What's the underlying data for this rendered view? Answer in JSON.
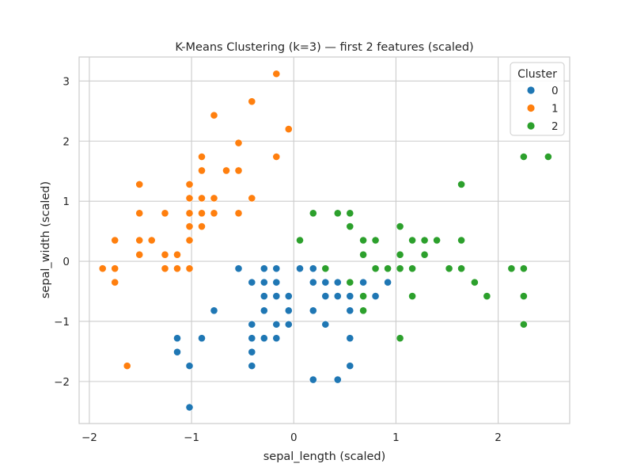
{
  "chart_data": {
    "type": "scatter",
    "title": "K-Means Clustering (k=3) — first 2 features (scaled)",
    "xlabel": "sepal_length (scaled)",
    "ylabel": "sepal_width (scaled)",
    "xlim": [
      -2.1,
      2.7
    ],
    "ylim": [
      -2.7,
      3.4
    ],
    "xticks": [
      -2,
      -1,
      0,
      1,
      2
    ],
    "yticks": [
      -2,
      -1,
      0,
      1,
      2,
      3
    ],
    "xtick_labels": [
      "−2",
      "−1",
      "0",
      "1",
      "2"
    ],
    "ytick_labels": [
      "−2",
      "−1",
      "0",
      "1",
      "2",
      "3"
    ],
    "grid": true,
    "legend": {
      "title": "Cluster",
      "placement": "top-right"
    },
    "series": [
      {
        "name": "0",
        "color": "#1f77b4",
        "points": [
          [
            -0.54,
            -0.12
          ],
          [
            -0.41,
            -0.35
          ],
          [
            -0.29,
            -0.12
          ],
          [
            -0.17,
            -0.12
          ],
          [
            0.06,
            -0.12
          ],
          [
            0.19,
            -0.12
          ],
          [
            -0.29,
            -0.35
          ],
          [
            -0.17,
            -0.35
          ],
          [
            0.19,
            -0.35
          ],
          [
            0.31,
            -0.35
          ],
          [
            0.43,
            -0.35
          ],
          [
            0.55,
            -0.35
          ],
          [
            0.68,
            -0.35
          ],
          [
            0.92,
            -0.35
          ],
          [
            -0.29,
            -0.58
          ],
          [
            -0.17,
            -0.58
          ],
          [
            -0.05,
            -0.58
          ],
          [
            0.31,
            -0.58
          ],
          [
            0.43,
            -0.58
          ],
          [
            0.55,
            -0.58
          ],
          [
            0.68,
            -0.58
          ],
          [
            0.8,
            -0.58
          ],
          [
            -0.78,
            -0.82
          ],
          [
            -0.29,
            -0.82
          ],
          [
            -0.05,
            -0.82
          ],
          [
            0.19,
            -0.82
          ],
          [
            0.55,
            -0.82
          ],
          [
            -0.41,
            -1.05
          ],
          [
            -0.17,
            -1.05
          ],
          [
            -0.05,
            -1.05
          ],
          [
            0.31,
            -1.05
          ],
          [
            -1.14,
            -1.28
          ],
          [
            -0.9,
            -1.28
          ],
          [
            -0.41,
            -1.28
          ],
          [
            -0.29,
            -1.28
          ],
          [
            -0.17,
            -1.28
          ],
          [
            0.55,
            -1.28
          ],
          [
            -1.14,
            -1.51
          ],
          [
            -0.41,
            -1.51
          ],
          [
            -1.02,
            -1.74
          ],
          [
            -0.41,
            -1.74
          ],
          [
            0.55,
            -1.74
          ],
          [
            0.19,
            -1.97
          ],
          [
            0.43,
            -1.97
          ],
          [
            -1.02,
            -2.43
          ]
        ]
      },
      {
        "name": "1",
        "color": "#ff7f0e",
        "points": [
          [
            -0.17,
            3.12
          ],
          [
            -0.41,
            2.66
          ],
          [
            -0.78,
            2.43
          ],
          [
            -0.05,
            2.2
          ],
          [
            -0.54,
            1.97
          ],
          [
            -0.9,
            1.74
          ],
          [
            -0.17,
            1.74
          ],
          [
            -0.9,
            1.51
          ],
          [
            -0.66,
            1.51
          ],
          [
            -0.54,
            1.51
          ],
          [
            -1.51,
            1.28
          ],
          [
            -1.02,
            1.28
          ],
          [
            -1.02,
            1.05
          ],
          [
            -0.9,
            1.05
          ],
          [
            -0.78,
            1.05
          ],
          [
            -0.41,
            1.05
          ],
          [
            -1.51,
            0.8
          ],
          [
            -1.26,
            0.8
          ],
          [
            -1.02,
            0.8
          ],
          [
            -0.9,
            0.8
          ],
          [
            -0.78,
            0.8
          ],
          [
            -0.54,
            0.8
          ],
          [
            -1.02,
            0.58
          ],
          [
            -0.9,
            0.58
          ],
          [
            -1.75,
            0.35
          ],
          [
            -1.51,
            0.35
          ],
          [
            -1.39,
            0.35
          ],
          [
            -1.02,
            0.35
          ],
          [
            -1.51,
            0.11
          ],
          [
            -1.26,
            0.11
          ],
          [
            -1.14,
            0.11
          ],
          [
            -1.87,
            -0.12
          ],
          [
            -1.75,
            -0.12
          ],
          [
            -1.26,
            -0.12
          ],
          [
            -1.14,
            -0.12
          ],
          [
            -1.02,
            -0.12
          ],
          [
            -1.75,
            -0.35
          ],
          [
            -1.63,
            -1.74
          ]
        ]
      },
      {
        "name": "2",
        "color": "#2ca02c",
        "points": [
          [
            2.25,
            1.74
          ],
          [
            2.49,
            1.74
          ],
          [
            1.64,
            1.28
          ],
          [
            0.19,
            0.8
          ],
          [
            0.43,
            0.8
          ],
          [
            0.55,
            0.8
          ],
          [
            0.55,
            0.58
          ],
          [
            1.04,
            0.58
          ],
          [
            0.06,
            0.35
          ],
          [
            0.68,
            0.35
          ],
          [
            0.8,
            0.35
          ],
          [
            1.16,
            0.35
          ],
          [
            1.28,
            0.35
          ],
          [
            1.4,
            0.35
          ],
          [
            1.64,
            0.35
          ],
          [
            0.68,
            0.11
          ],
          [
            1.04,
            0.11
          ],
          [
            1.28,
            0.11
          ],
          [
            0.31,
            -0.12
          ],
          [
            0.8,
            -0.12
          ],
          [
            0.92,
            -0.12
          ],
          [
            1.04,
            -0.12
          ],
          [
            1.16,
            -0.12
          ],
          [
            1.52,
            -0.12
          ],
          [
            1.64,
            -0.12
          ],
          [
            2.13,
            -0.12
          ],
          [
            2.25,
            -0.12
          ],
          [
            0.55,
            -0.35
          ],
          [
            1.77,
            -0.35
          ],
          [
            0.68,
            -0.58
          ],
          [
            1.16,
            -0.58
          ],
          [
            1.89,
            -0.58
          ],
          [
            2.25,
            -0.58
          ],
          [
            0.68,
            -0.82
          ],
          [
            2.25,
            -1.05
          ],
          [
            1.04,
            -1.28
          ]
        ]
      }
    ]
  }
}
